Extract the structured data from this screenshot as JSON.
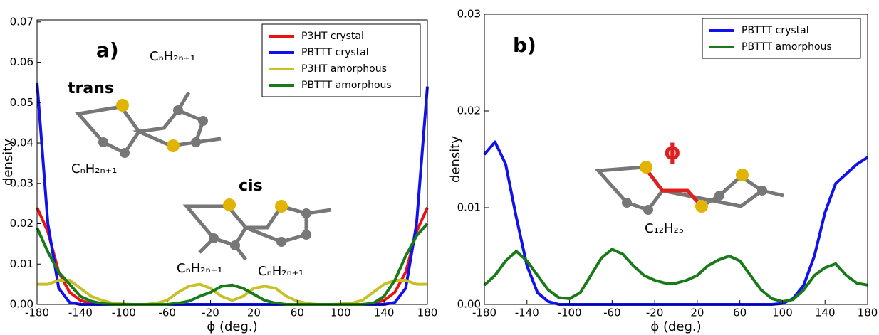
{
  "chart_data": [
    {
      "type": "line",
      "panel_label": "a)",
      "xlabel": "ϕ (deg.)",
      "ylabel": "density",
      "x": [
        -180,
        -170,
        -160,
        -150,
        -140,
        -130,
        -120,
        -110,
        -100,
        -90,
        -80,
        -70,
        -60,
        -50,
        -40,
        -30,
        -20,
        -10,
        0,
        10,
        20,
        30,
        40,
        50,
        60,
        70,
        80,
        90,
        100,
        110,
        120,
        130,
        140,
        150,
        160,
        170,
        180
      ],
      "series": [
        {
          "name": "P3HT crystal",
          "color": "#ee1111",
          "values": [
            0.024,
            0.018,
            0.008,
            0.003,
            0.001,
            0.0002,
            0,
            0,
            0,
            0,
            0,
            0,
            0,
            0,
            0,
            0,
            0,
            0,
            0,
            0,
            0,
            0,
            0,
            0,
            0,
            0,
            0,
            0,
            0,
            0,
            0,
            0.0002,
            0.001,
            0.003,
            0.008,
            0.018,
            0.024
          ]
        },
        {
          "name": "PBTTT crystal",
          "color": "#1111ee",
          "values": [
            0.055,
            0.02,
            0.004,
            0.0005,
            0,
            0,
            0,
            0,
            0,
            0,
            0,
            0,
            0,
            0,
            0,
            0,
            0,
            0,
            0,
            0,
            0,
            0,
            0,
            0,
            0,
            0,
            0,
            0,
            0,
            0,
            0,
            0,
            0,
            0.0005,
            0.004,
            0.02,
            0.054
          ]
        },
        {
          "name": "P3HT amorphous",
          "color": "#c8c028",
          "values": [
            0.005,
            0.005,
            0.006,
            0.006,
            0.004,
            0.002,
            0.001,
            0.0003,
            0.0001,
            0,
            0,
            0.0003,
            0.001,
            0.003,
            0.0045,
            0.005,
            0.004,
            0.002,
            0.001,
            0.002,
            0.004,
            0.0045,
            0.004,
            0.002,
            0.0008,
            0.0002,
            0,
            0,
            0.0001,
            0.0003,
            0.001,
            0.003,
            0.005,
            0.006,
            0.006,
            0.005,
            0.005
          ]
        },
        {
          "name": "PBTTT amorphous",
          "color": "#1a7a1a",
          "values": [
            0.019,
            0.013,
            0.008,
            0.005,
            0.002,
            0.0008,
            0.0002,
            0,
            0,
            0,
            0,
            0,
            0,
            0.0003,
            0.0008,
            0.002,
            0.003,
            0.0045,
            0.0048,
            0.004,
            0.0025,
            0.001,
            0.0003,
            0,
            0,
            0,
            0,
            0,
            0,
            0,
            0,
            0.0003,
            0.002,
            0.006,
            0.012,
            0.017,
            0.02
          ]
        }
      ],
      "xlim": [
        -180,
        180
      ],
      "xticks": [
        -180,
        -140,
        -100,
        -60,
        -20,
        20,
        60,
        100,
        140,
        180
      ],
      "ylim": [
        0,
        0.0705
      ],
      "yticks": [
        {
          "value": 0,
          "label": "0.00"
        },
        {
          "value": 0.01,
          "label": "0.01"
        },
        {
          "value": 0.02,
          "label": "0.02"
        },
        {
          "value": 0.03,
          "label": "0.03"
        },
        {
          "value": 0.04,
          "label": "0.04"
        },
        {
          "value": 0.05,
          "label": "0.05"
        },
        {
          "value": 0.06,
          "label": "0.06"
        },
        {
          "value": 0.07,
          "label": "0.07"
        }
      ],
      "legend": "upper right",
      "annotations": [
        "trans",
        "CₙH₂ₙ₊₁",
        "CₙH₂ₙ₊₁",
        "cis",
        "CₙH₂ₙ₊₁",
        "CₙH₂ₙ₊₁"
      ]
    },
    {
      "type": "line",
      "panel_label": "b)",
      "xlabel": "ϕ (deg.)",
      "ylabel": "density",
      "x": [
        -180,
        -170,
        -160,
        -150,
        -140,
        -130,
        -120,
        -110,
        -100,
        -90,
        -80,
        -70,
        -60,
        -50,
        -40,
        -30,
        -20,
        -10,
        0,
        10,
        20,
        30,
        40,
        50,
        60,
        70,
        80,
        90,
        100,
        110,
        120,
        130,
        140,
        150,
        160,
        170,
        180
      ],
      "series": [
        {
          "name": "PBTTT crystal",
          "color": "#1111ee",
          "values": [
            0.0155,
            0.0168,
            0.0145,
            0.009,
            0.004,
            0.0012,
            0.0003,
            0,
            0,
            0,
            0,
            0,
            0,
            0,
            0,
            0,
            0,
            0,
            0,
            0,
            0,
            0,
            0,
            0,
            0,
            0,
            0,
            0,
            0.0001,
            0.0006,
            0.002,
            0.005,
            0.0095,
            0.0125,
            0.0135,
            0.0145,
            0.0152
          ]
        },
        {
          "name": "PBTTT amorphous",
          "color": "#1a7a1a",
          "values": [
            0.002,
            0.003,
            0.0045,
            0.0055,
            0.0045,
            0.003,
            0.0015,
            0.0007,
            0.0006,
            0.0012,
            0.003,
            0.0048,
            0.0057,
            0.0052,
            0.004,
            0.003,
            0.0025,
            0.0022,
            0.0022,
            0.0025,
            0.003,
            0.004,
            0.0046,
            0.005,
            0.0045,
            0.003,
            0.0015,
            0.0006,
            0.0003,
            0.0005,
            0.0015,
            0.003,
            0.0038,
            0.0042,
            0.003,
            0.0022,
            0.002
          ]
        }
      ],
      "xlim": [
        -180,
        180
      ],
      "xticks": [
        -180,
        -140,
        -100,
        -60,
        -20,
        20,
        60,
        100,
        140,
        180
      ],
      "ylim": [
        0,
        0.03
      ],
      "yticks": [
        {
          "value": 0,
          "label": "0.00"
        },
        {
          "value": 0.01,
          "label": "0.01"
        },
        {
          "value": 0.02,
          "label": "0.02"
        },
        {
          "value": 0.03,
          "label": "0.03"
        }
      ],
      "legend": "upper right",
      "annotations": [
        "ϕ",
        "C₁₂H₂₅"
      ]
    }
  ]
}
